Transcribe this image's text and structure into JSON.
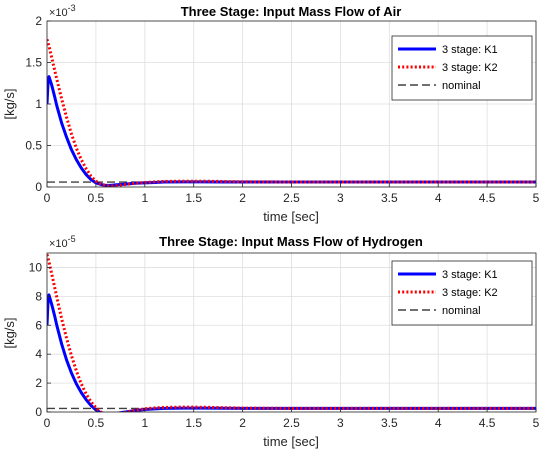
{
  "chart_data": [
    {
      "type": "line",
      "title": "Three Stage: Input Mass Flow of Air",
      "xlabel": "time [sec]",
      "ylabel": "[kg/s]",
      "y_exponent_label": "×10",
      "y_exponent_power": "-3",
      "xlim": [
        0,
        5
      ],
      "ylim": [
        0,
        2
      ],
      "xticks": [
        0,
        0.5,
        1,
        1.5,
        2,
        2.5,
        3,
        3.5,
        4,
        4.5,
        5
      ],
      "xtick_labels": [
        "0",
        "0.5",
        "1",
        "1.5",
        "2",
        "2.5",
        "3",
        "3.5",
        "4",
        "4.5",
        "5"
      ],
      "yticks": [
        0,
        0.5,
        1,
        1.5,
        2
      ],
      "ytick_labels": [
        "0",
        "0.5",
        "1",
        "1.5",
        "2"
      ],
      "grid": true,
      "legend_position": "top-right",
      "series": [
        {
          "name": "3 stage: K1",
          "color": "#0000ff",
          "style": "solid",
          "x": [
            0,
            0.01,
            0.02,
            0.05,
            0.08,
            0.1,
            0.15,
            0.2,
            0.25,
            0.3,
            0.35,
            0.4,
            0.45,
            0.5,
            0.55,
            0.6,
            0.65,
            0.7,
            0.75,
            0.8,
            0.9,
            1.0,
            1.1,
            1.2,
            1.4,
            1.6,
            1.8,
            2.0,
            2.5,
            3.0,
            3.5,
            4.0,
            4.5,
            5.0
          ],
          "y": [
            1.0,
            1.25,
            1.33,
            1.22,
            1.08,
            0.98,
            0.77,
            0.6,
            0.45,
            0.33,
            0.23,
            0.15,
            0.09,
            0.05,
            0.03,
            0.02,
            0.02,
            0.025,
            0.03,
            0.035,
            0.045,
            0.05,
            0.055,
            0.06,
            0.062,
            0.062,
            0.06,
            0.06,
            0.06,
            0.06,
            0.06,
            0.06,
            0.06,
            0.06
          ]
        },
        {
          "name": "3 stage: K2",
          "color": "#ff0000",
          "style": "dotted",
          "x": [
            0,
            0.02,
            0.05,
            0.1,
            0.15,
            0.2,
            0.25,
            0.3,
            0.35,
            0.4,
            0.45,
            0.5,
            0.55,
            0.6,
            0.65,
            0.7,
            0.75,
            0.8,
            0.9,
            1.0,
            1.1,
            1.2,
            1.4,
            1.6,
            1.8,
            2.0,
            2.5,
            3.0,
            3.5,
            4.0,
            4.5,
            5.0
          ],
          "y": [
            1.78,
            1.7,
            1.55,
            1.3,
            1.06,
            0.84,
            0.64,
            0.47,
            0.33,
            0.22,
            0.13,
            0.07,
            0.035,
            0.018,
            0.012,
            0.015,
            0.022,
            0.03,
            0.045,
            0.055,
            0.062,
            0.067,
            0.07,
            0.07,
            0.066,
            0.063,
            0.06,
            0.06,
            0.06,
            0.06,
            0.06,
            0.06
          ]
        },
        {
          "name": "nominal",
          "color": "#404040",
          "style": "dashed",
          "x": [
            0,
            5
          ],
          "y": [
            0.06,
            0.06
          ]
        }
      ]
    },
    {
      "type": "line",
      "title": "Three Stage: Input Mass Flow of Hydrogen",
      "xlabel": "time [sec]",
      "ylabel": "[kg/s]",
      "y_exponent_label": "×10",
      "y_exponent_power": "-5",
      "xlim": [
        0,
        5
      ],
      "ylim": [
        0,
        11
      ],
      "xticks": [
        0,
        0.5,
        1,
        1.5,
        2,
        2.5,
        3,
        3.5,
        4,
        4.5,
        5
      ],
      "xtick_labels": [
        "0",
        "0.5",
        "1",
        "1.5",
        "2",
        "2.5",
        "3",
        "3.5",
        "4",
        "4.5",
        "5"
      ],
      "yticks": [
        0,
        2,
        4,
        6,
        8,
        10
      ],
      "ytick_labels": [
        "0",
        "2",
        "4",
        "6",
        "8",
        "10"
      ],
      "grid": true,
      "legend_position": "top-right",
      "series": [
        {
          "name": "3 stage: K1",
          "color": "#0000ff",
          "style": "solid",
          "x": [
            0,
            0.01,
            0.02,
            0.05,
            0.08,
            0.1,
            0.15,
            0.2,
            0.25,
            0.3,
            0.35,
            0.4,
            0.45,
            0.5,
            0.55,
            0.6,
            0.65,
            0.7,
            0.75,
            0.8,
            0.9,
            1.0,
            1.1,
            1.2,
            1.4,
            1.6,
            1.8,
            2.0,
            2.5,
            3.0,
            3.5,
            4.0,
            4.5,
            5.0
          ],
          "y": [
            6.0,
            7.6,
            8.1,
            7.4,
            6.6,
            6.0,
            4.7,
            3.6,
            2.7,
            1.95,
            1.35,
            0.85,
            0.45,
            0.15,
            -0.05,
            -0.12,
            -0.15,
            -0.12,
            -0.05,
            0.0,
            0.1,
            0.17,
            0.22,
            0.25,
            0.27,
            0.27,
            0.26,
            0.25,
            0.25,
            0.25,
            0.25,
            0.25,
            0.25,
            0.25
          ]
        },
        {
          "name": "3 stage: K2",
          "color": "#ff0000",
          "style": "dotted",
          "x": [
            0,
            0.02,
            0.05,
            0.1,
            0.15,
            0.2,
            0.25,
            0.3,
            0.35,
            0.4,
            0.45,
            0.5,
            0.55,
            0.6,
            0.65,
            0.7,
            0.75,
            0.8,
            0.9,
            1.0,
            1.1,
            1.2,
            1.4,
            1.6,
            1.8,
            2.0,
            2.5,
            3.0,
            3.5,
            4.0,
            4.5,
            5.0
          ],
          "y": [
            10.9,
            10.4,
            9.5,
            7.95,
            6.45,
            5.1,
            3.9,
            2.85,
            1.95,
            1.25,
            0.7,
            0.3,
            0.0,
            -0.15,
            -0.22,
            -0.2,
            -0.12,
            -0.02,
            0.12,
            0.22,
            0.28,
            0.32,
            0.34,
            0.33,
            0.3,
            0.27,
            0.25,
            0.25,
            0.25,
            0.25,
            0.25,
            0.25
          ]
        },
        {
          "name": "nominal",
          "color": "#404040",
          "style": "dashed",
          "x": [
            0,
            5
          ],
          "y": [
            0.25,
            0.25
          ]
        }
      ]
    }
  ]
}
